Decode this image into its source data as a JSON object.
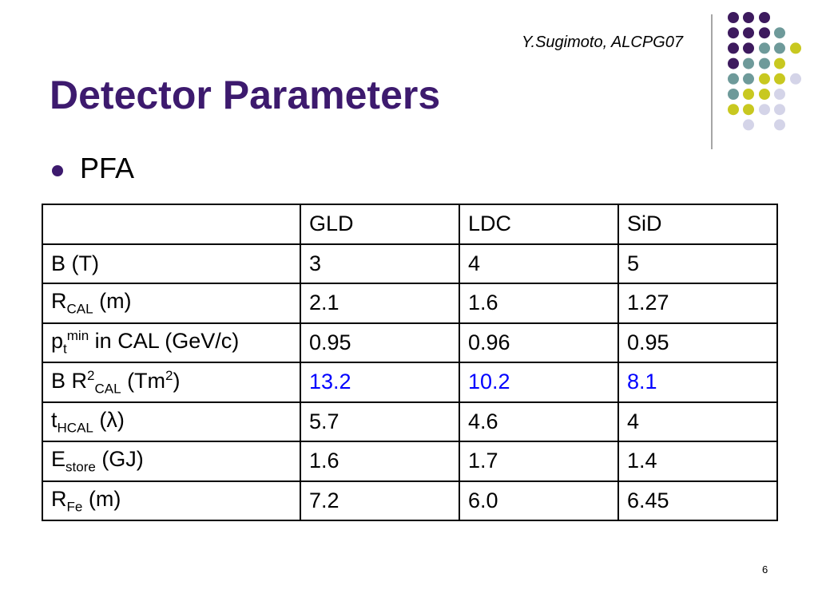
{
  "header": {
    "author": "Y.Sugimoto, ALCPG07",
    "title": "Detector Parameters",
    "page_number": "6"
  },
  "bullets": [
    "PFA"
  ],
  "table": {
    "columns": [
      "GLD",
      "LDC",
      "SiD"
    ],
    "rows": [
      {
        "label": [
          {
            "text": "B (T)"
          }
        ],
        "cells": [
          "3",
          "4",
          "5"
        ]
      },
      {
        "label": [
          {
            "text": "R"
          },
          {
            "sub": "CAL"
          },
          {
            "text": " (m)"
          }
        ],
        "cells": [
          "2.1",
          "1.6",
          "1.27"
        ]
      },
      {
        "label": [
          {
            "text": "p"
          },
          {
            "sub": "t"
          },
          {
            "sup": "min"
          },
          {
            "text": " in CAL (GeV/c)"
          }
        ],
        "cells": [
          "0.95",
          "0.96",
          "0.95"
        ]
      },
      {
        "label": [
          {
            "text": "B R"
          },
          {
            "sup": "2"
          },
          {
            "sub": "CAL"
          },
          {
            "text": " (Tm"
          },
          {
            "sup": "2"
          },
          {
            "text": ")"
          }
        ],
        "cells": [
          "13.2",
          "10.2",
          "8.1"
        ],
        "color": "#0000ff"
      },
      {
        "label": [
          {
            "text": "t"
          },
          {
            "sub": "HCAL"
          },
          {
            "text": " (λ)"
          }
        ],
        "cells": [
          "5.7",
          "4.6",
          "4"
        ]
      },
      {
        "label": [
          {
            "text": "E"
          },
          {
            "sub": "store"
          },
          {
            "text": " (GJ)"
          }
        ],
        "cells": [
          "1.6",
          "1.7",
          "1.4"
        ]
      },
      {
        "label": [
          {
            "text": "R"
          },
          {
            "sub": "Fe"
          },
          {
            "text": " (m)"
          }
        ],
        "cells": [
          "7.2",
          "6.0",
          "6.45"
        ]
      }
    ]
  }
}
